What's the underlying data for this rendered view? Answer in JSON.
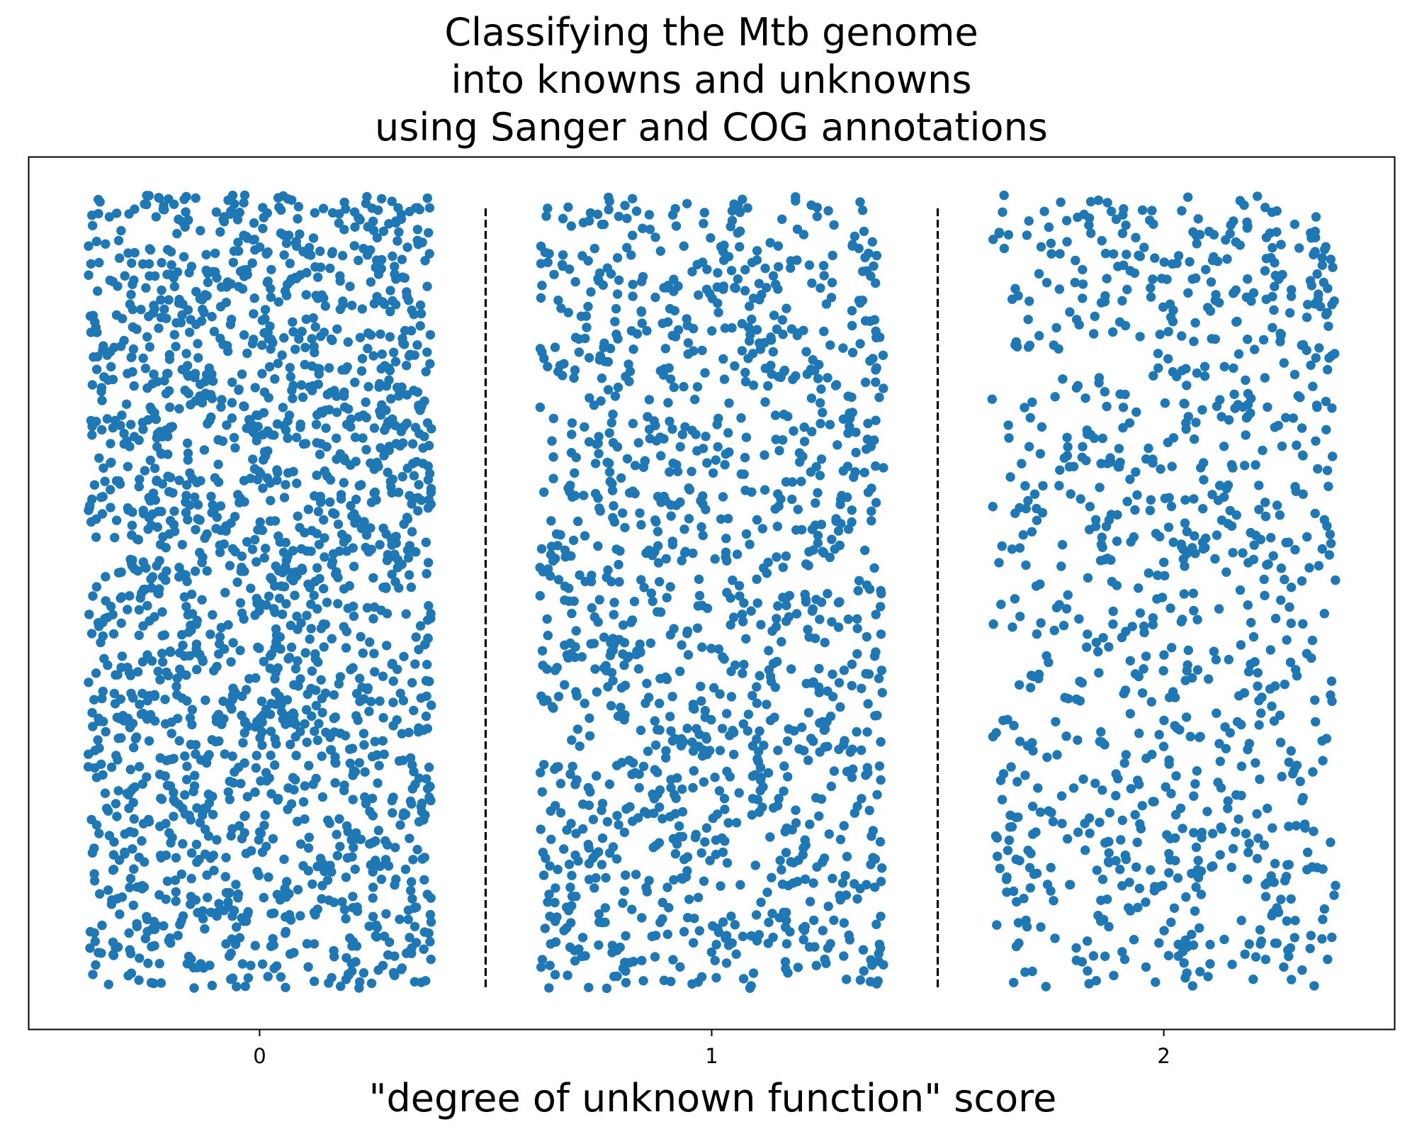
{
  "chart_data": {
    "type": "scatter",
    "style": "strip-plot with horizontal jitter",
    "title_lines": [
      "Classifying the Mtb genome",
      "into knowns and unknowns",
      "using Sanger and COG annotations"
    ],
    "xlabel": "\"degree of unknown function\" score",
    "ylabel": "",
    "x_ticks": [
      "0",
      "1",
      "2"
    ],
    "xlim": [
      -0.51,
      2.51
    ],
    "y_ticks_visible": false,
    "grid": false,
    "legend": "none",
    "marker_color": "#1f77b4",
    "separator_lines": {
      "x": [
        0.5,
        1.5
      ],
      "style": "dashed",
      "color": "#000000"
    },
    "groups": [
      {
        "x": 0,
        "jitter_halfwidth": 0.38,
        "approx_count": 1900
      },
      {
        "x": 1,
        "jitter_halfwidth": 0.38,
        "approx_count": 1300
      },
      {
        "x": 2,
        "jitter_halfwidth": 0.38,
        "approx_count": 950
      }
    ]
  }
}
